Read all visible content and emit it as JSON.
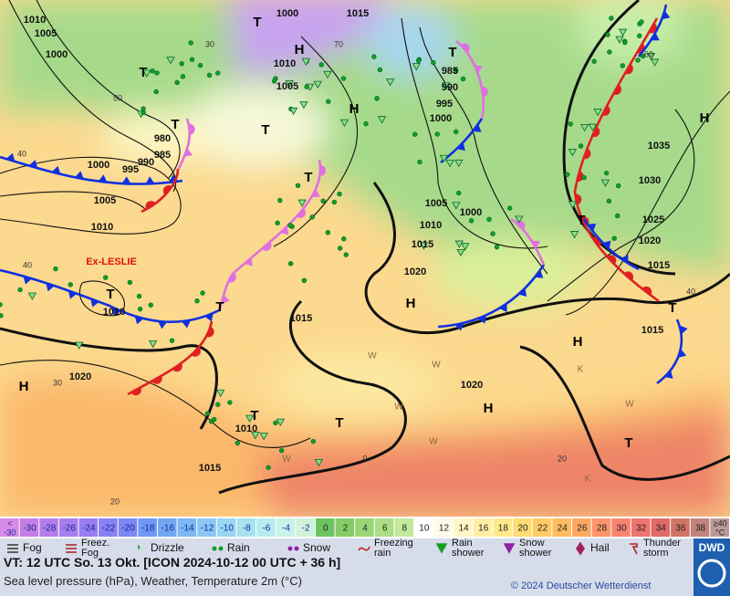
{
  "map": {
    "pressure_labels": [
      "1010",
      "1005",
      "1000",
      "1000",
      "1015",
      "1010",
      "1005",
      "985",
      "990",
      "995",
      "1000",
      "980",
      "985",
      "990",
      "995",
      "1000",
      "1005",
      "1010",
      "1035",
      "1030",
      "1025",
      "1020",
      "1015",
      "1005",
      "1000",
      "1010",
      "1015",
      "1020",
      "1015",
      "1015",
      "1020",
      "1020",
      "1010",
      "1010",
      "1015"
    ],
    "centers": [
      "H",
      "H",
      "H",
      "H",
      "H",
      "H",
      "H",
      "T",
      "T",
      "T",
      "T",
      "T",
      "T",
      "T",
      "T",
      "T",
      "T",
      "T",
      "T",
      "T"
    ],
    "storm_name": "Ex-LESLIE",
    "grid_labels": [
      "30",
      "70",
      "60",
      "50",
      "40",
      "40",
      "40",
      "30",
      "20",
      "20",
      "0"
    ],
    "region_letters": [
      "W",
      "W",
      "W",
      "W",
      "W",
      "W",
      "K",
      "K"
    ]
  },
  "scale": {
    "items": [
      {
        "lines": [
          "<",
          "-30"
        ],
        "color": "#d48ae6"
      },
      {
        "lines": [
          "-30"
        ],
        "color": "#c47ee6"
      },
      {
        "lines": [
          "-28"
        ],
        "color": "#b67eea"
      },
      {
        "lines": [
          "-26"
        ],
        "color": "#a67eee"
      },
      {
        "lines": [
          "-24"
        ],
        "color": "#987ef0"
      },
      {
        "lines": [
          "-22"
        ],
        "color": "#8a82f2"
      },
      {
        "lines": [
          "-20"
        ],
        "color": "#7a88f2"
      },
      {
        "lines": [
          "-18"
        ],
        "color": "#6e98f2"
      },
      {
        "lines": [
          "-16"
        ],
        "color": "#72a8f2"
      },
      {
        "lines": [
          "-14"
        ],
        "color": "#7cb8f2"
      },
      {
        "lines": [
          "-12"
        ],
        "color": "#88c8f2"
      },
      {
        "lines": [
          "-10"
        ],
        "color": "#98d6f2"
      },
      {
        "lines": [
          "-8"
        ],
        "color": "#a8e2f0"
      },
      {
        "lines": [
          "-6"
        ],
        "color": "#b8ecee"
      },
      {
        "lines": [
          "-4"
        ],
        "color": "#c8f2ea"
      },
      {
        "lines": [
          "-2"
        ],
        "color": "#d0f2dc"
      },
      {
        "lines": [
          "0"
        ],
        "color": "#6cc460"
      },
      {
        "lines": [
          "2"
        ],
        "color": "#84cc68"
      },
      {
        "lines": [
          "4"
        ],
        "color": "#98d676"
      },
      {
        "lines": [
          "6"
        ],
        "color": "#acde86"
      },
      {
        "lines": [
          "8"
        ],
        "color": "#c4e89c"
      },
      {
        "lines": [
          "10"
        ],
        "color": "#ffffff"
      },
      {
        "lines": [
          "12"
        ],
        "color": "#fffbe6"
      },
      {
        "lines": [
          "14"
        ],
        "color": "#fff6c4"
      },
      {
        "lines": [
          "16"
        ],
        "color": "#ffefa6"
      },
      {
        "lines": [
          "18"
        ],
        "color": "#ffe98a"
      },
      {
        "lines": [
          "20"
        ],
        "color": "#ffdc74"
      },
      {
        "lines": [
          "22"
        ],
        "color": "#ffcc64"
      },
      {
        "lines": [
          "24"
        ],
        "color": "#ffbc60"
      },
      {
        "lines": [
          "26"
        ],
        "color": "#ffa862"
      },
      {
        "lines": [
          "28"
        ],
        "color": "#ff946a"
      },
      {
        "lines": [
          "30"
        ],
        "color": "#fa8470"
      },
      {
        "lines": [
          "32"
        ],
        "color": "#ee7470"
      },
      {
        "lines": [
          "34"
        ],
        "color": "#e06a66"
      },
      {
        "lines": [
          "36"
        ],
        "color": "#d07464"
      },
      {
        "lines": [
          "38"
        ],
        "color": "#c0847c"
      },
      {
        "lines": [
          "≥40",
          "°C"
        ],
        "color": "#bc9a98"
      }
    ]
  },
  "legend": [
    {
      "lines": [
        "Fog"
      ]
    },
    {
      "lines": [
        "Freez.",
        "Fog"
      ]
    },
    {
      "lines": [
        "Drizzle"
      ]
    },
    {
      "lines": [
        "Rain"
      ]
    },
    {
      "lines": [
        "Snow"
      ]
    },
    {
      "lines": [
        "Freezing",
        "rain"
      ]
    },
    {
      "lines": [
        "Rain",
        "shower"
      ]
    },
    {
      "lines": [
        "Snow",
        "shower"
      ]
    },
    {
      "lines": [
        "Hail"
      ]
    },
    {
      "lines": [
        "Thunder",
        "storm"
      ]
    }
  ],
  "footer": {
    "valid_time": "VT: 12 UTC So.  13 Okt.  [ICON 2024-10-12  00 UTC + 36 h]",
    "description": "Sea level pressure (hPa), Weather, Temperature 2m (°C)",
    "copyright": "© 2024 Deutscher Wetterdienst",
    "logo": "DWD"
  }
}
